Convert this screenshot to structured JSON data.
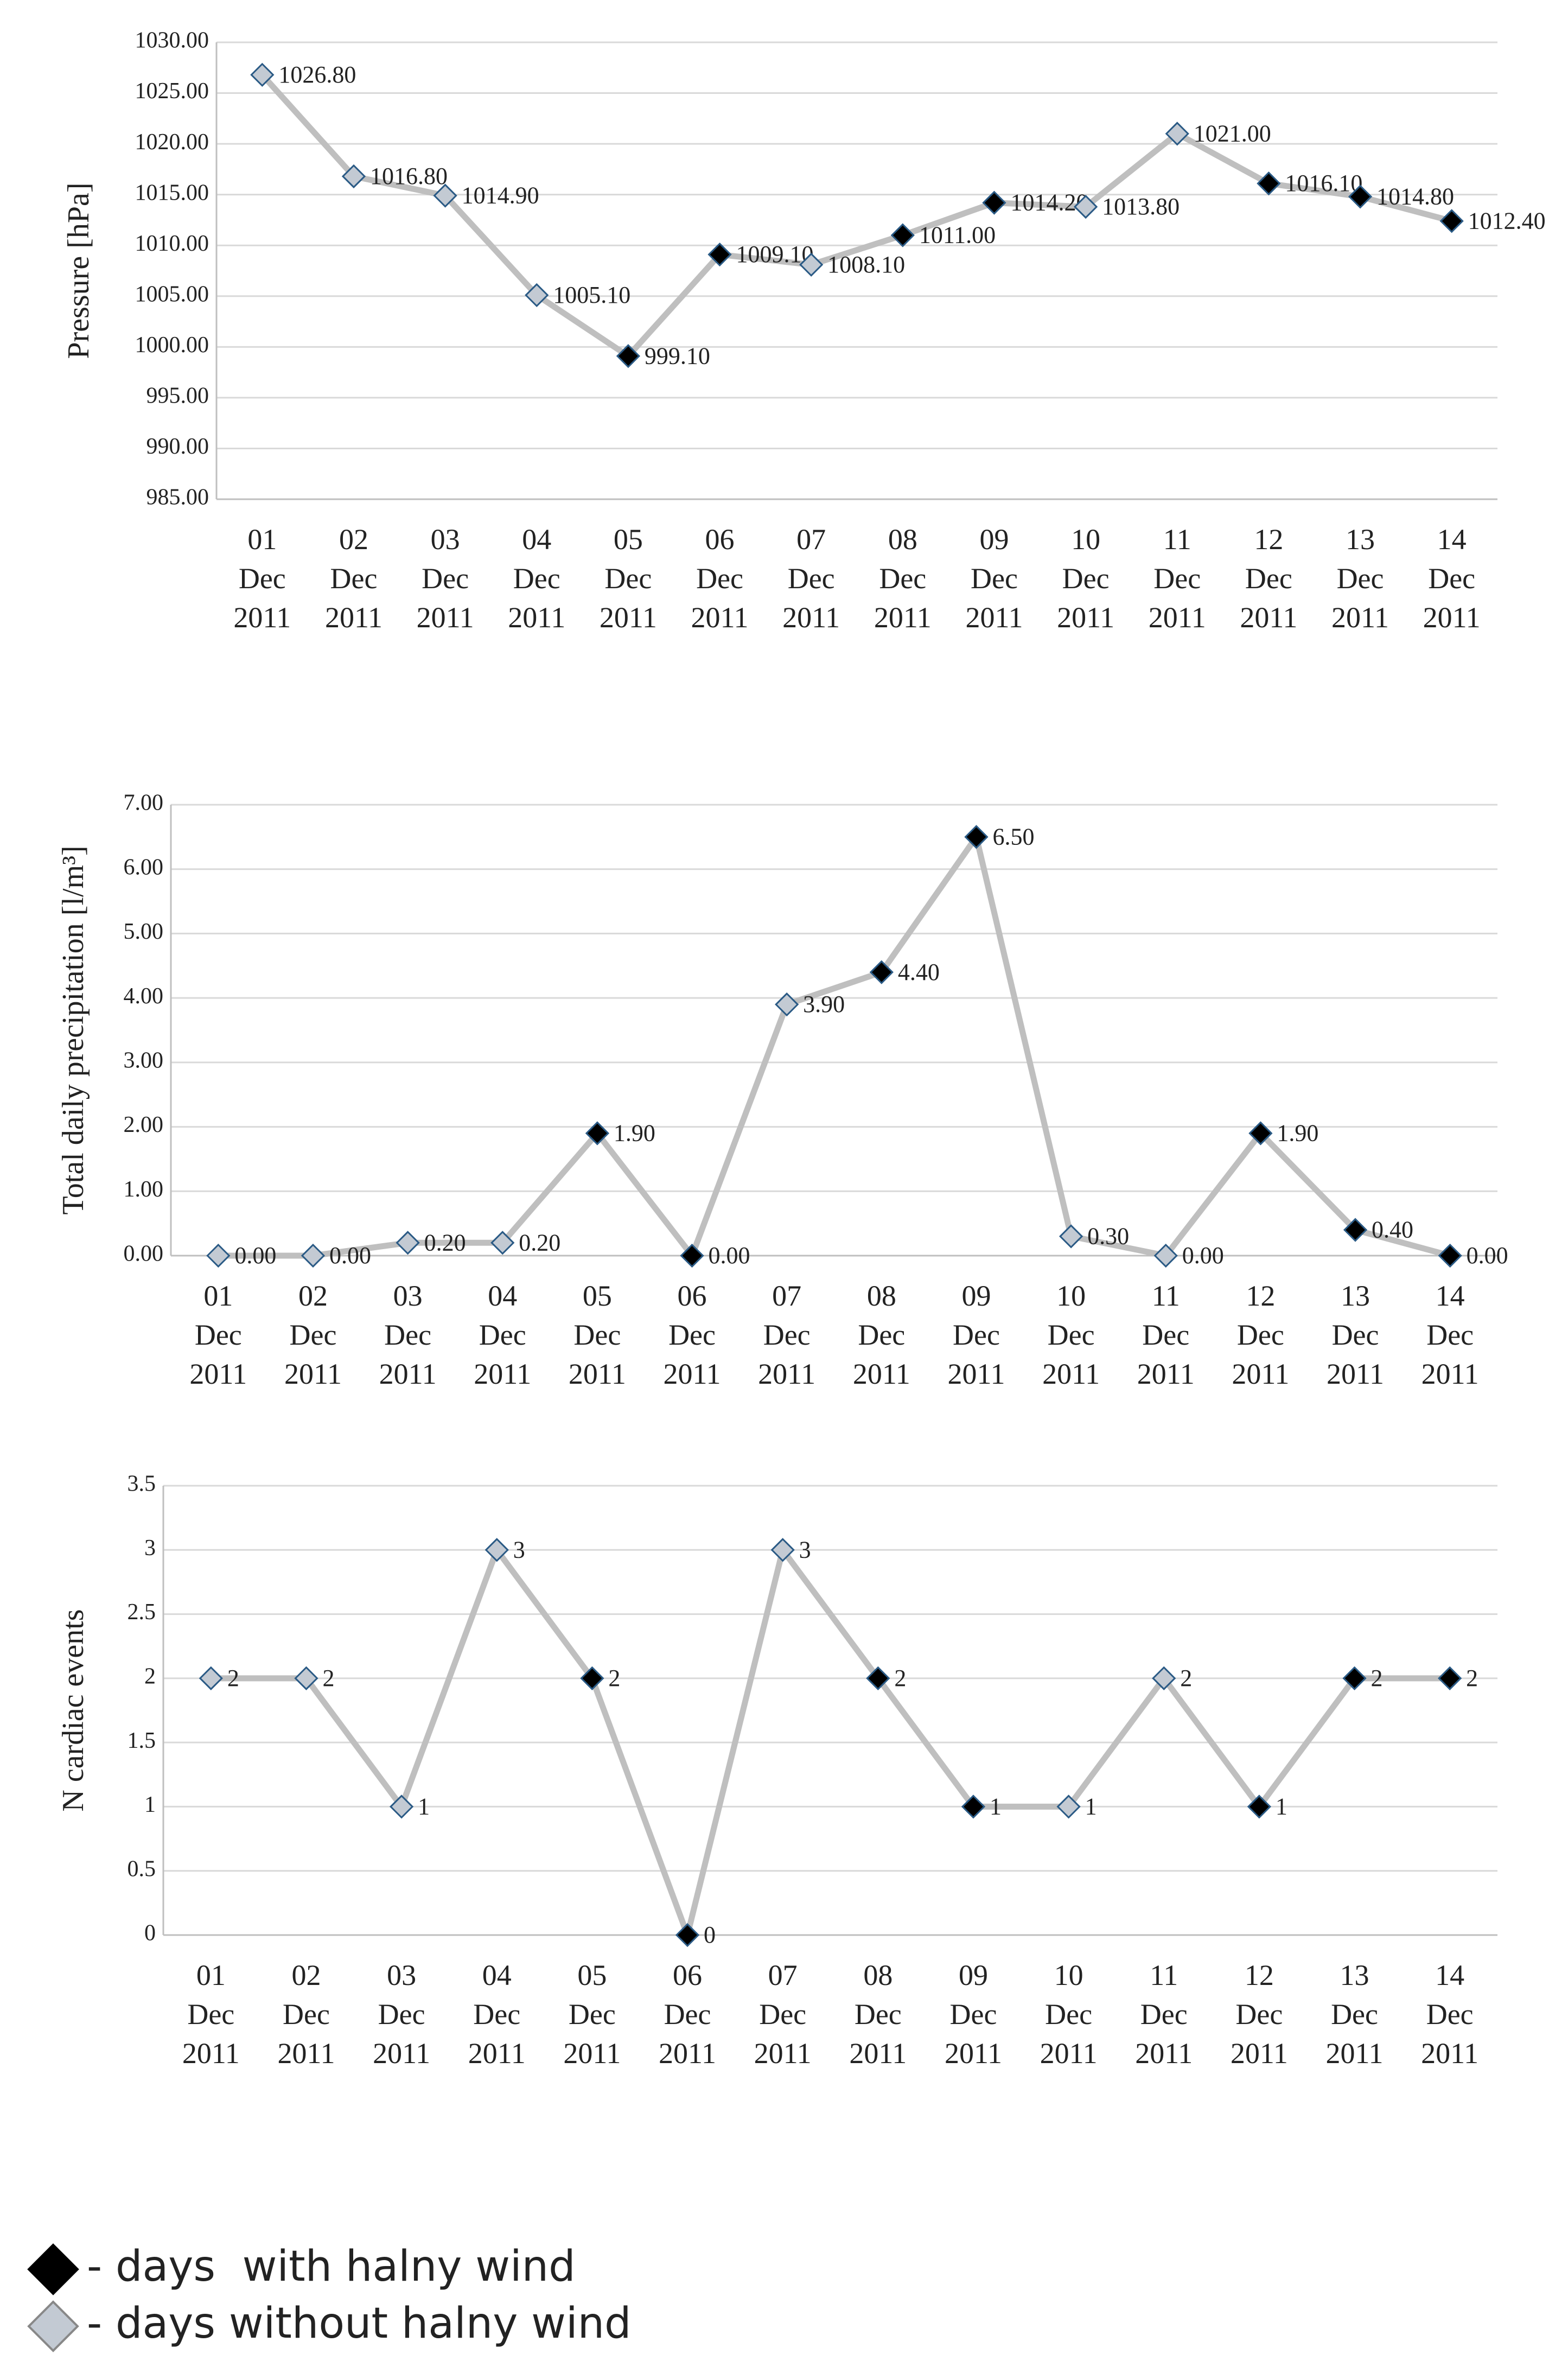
{
  "chart_data": [
    {
      "type": "line",
      "ylabel": "Pressure  [hPa]",
      "categories": [
        "01 Dec 2011",
        "02 Dec 2011",
        "03 Dec 2011",
        "04 Dec 2011",
        "05 Dec 2011",
        "06 Dec 2011",
        "07 Dec 2011",
        "08 Dec 2011",
        "09 Dec 2011",
        "10 Dec 2011",
        "11 Dec 2011",
        "12 Dec 2011",
        "13 Dec 2011",
        "14 Dec 2011"
      ],
      "values": [
        1026.8,
        1016.8,
        1014.9,
        1005.1,
        999.1,
        1009.1,
        1008.1,
        1011.0,
        1014.2,
        1013.8,
        1021.0,
        1016.1,
        1014.8,
        1012.4
      ],
      "value_labels": [
        "1026.80",
        "1016.80",
        "1014.90",
        "1005.10",
        "999.10",
        "1009.10",
        "1008.10",
        "1011.00",
        "1014.20",
        "1013.80",
        "1021.00",
        "1016.10",
        "1014.80",
        "1012.40"
      ],
      "halny": [
        false,
        false,
        false,
        false,
        true,
        true,
        false,
        true,
        true,
        false,
        false,
        true,
        true,
        true
      ],
      "ylim": [
        985,
        1030
      ],
      "yticks": [
        {
          "value": 985,
          "label": "985.00"
        },
        {
          "value": 990,
          "label": "990.00"
        },
        {
          "value": 995,
          "label": "995.00"
        },
        {
          "value": 1000,
          "label": "1000.00"
        },
        {
          "value": 1005,
          "label": "1005.00"
        },
        {
          "value": 1010,
          "label": "1010.00"
        },
        {
          "value": 1015,
          "label": "1015.00"
        },
        {
          "value": 1020,
          "label": "1020.00"
        },
        {
          "value": 1025,
          "label": "1025.00"
        },
        {
          "value": 1030,
          "label": "1030.00"
        }
      ],
      "grid": true,
      "color": "#bfbfbf"
    },
    {
      "type": "line",
      "ylabel": "Total daily precipitation  [l/m³]",
      "categories": [
        "01 Dec 2011",
        "02 Dec 2011",
        "03 Dec 2011",
        "04 Dec 2011",
        "05 Dec 2011",
        "06 Dec 2011",
        "07 Dec 2011",
        "08 Dec 2011",
        "09 Dec 2011",
        "10 Dec 2011",
        "11 Dec 2011",
        "12 Dec 2011",
        "13 Dec 2011",
        "14 Dec 2011"
      ],
      "values": [
        0,
        0,
        0.2,
        0.2,
        1.9,
        0,
        3.9,
        4.4,
        6.5,
        0.3,
        0,
        1.9,
        0.4,
        0
      ],
      "value_labels": [
        "0.00",
        "0.00",
        "0.20",
        "0.20",
        "1.90",
        "0.00",
        "3.90",
        "4.40",
        "6.50",
        "0.30",
        "0.00",
        "1.90",
        "0.40",
        "0.00"
      ],
      "halny": [
        false,
        false,
        false,
        false,
        true,
        true,
        false,
        true,
        true,
        false,
        false,
        true,
        true,
        true
      ],
      "ylim": [
        0,
        7
      ],
      "yticks": [
        {
          "value": 0,
          "label": "0.00"
        },
        {
          "value": 1,
          "label": "1.00"
        },
        {
          "value": 2,
          "label": "2.00"
        },
        {
          "value": 3,
          "label": "3.00"
        },
        {
          "value": 4,
          "label": "4.00"
        },
        {
          "value": 5,
          "label": "5.00"
        },
        {
          "value": 6,
          "label": "6.00"
        },
        {
          "value": 7,
          "label": "7.00"
        }
      ],
      "grid": true,
      "color": "#bfbfbf"
    },
    {
      "type": "line",
      "ylabel": "N cardiac events",
      "categories": [
        "01 Dec 2011",
        "02 Dec 2011",
        "03 Dec 2011",
        "04 Dec 2011",
        "05 Dec 2011",
        "06 Dec 2011",
        "07 Dec 2011",
        "08 Dec 2011",
        "09 Dec 2011",
        "10 Dec 2011",
        "11 Dec 2011",
        "12 Dec 2011",
        "13 Dec 2011",
        "14 Dec 2011"
      ],
      "values": [
        2,
        2,
        1,
        3,
        2,
        0,
        3,
        2,
        1,
        1,
        2,
        1,
        2,
        2
      ],
      "halny": [
        false,
        false,
        false,
        false,
        true,
        true,
        false,
        true,
        true,
        false,
        false,
        true,
        true,
        true
      ],
      "ylim": [
        0,
        3.5
      ],
      "yticks": [
        0,
        0.5,
        1,
        1.5,
        2,
        2.5,
        3,
        3.5
      ],
      "grid": true,
      "color": "#bfbfbf"
    }
  ],
  "markers": {
    "halny_fill": "#000000",
    "other_fill": "#c3cad3",
    "edge": "#2a5a85"
  },
  "legend": [
    {
      "label": "- days  with halny wind",
      "halny": true
    },
    {
      "label": "- days without halny wind",
      "halny": false
    }
  ]
}
